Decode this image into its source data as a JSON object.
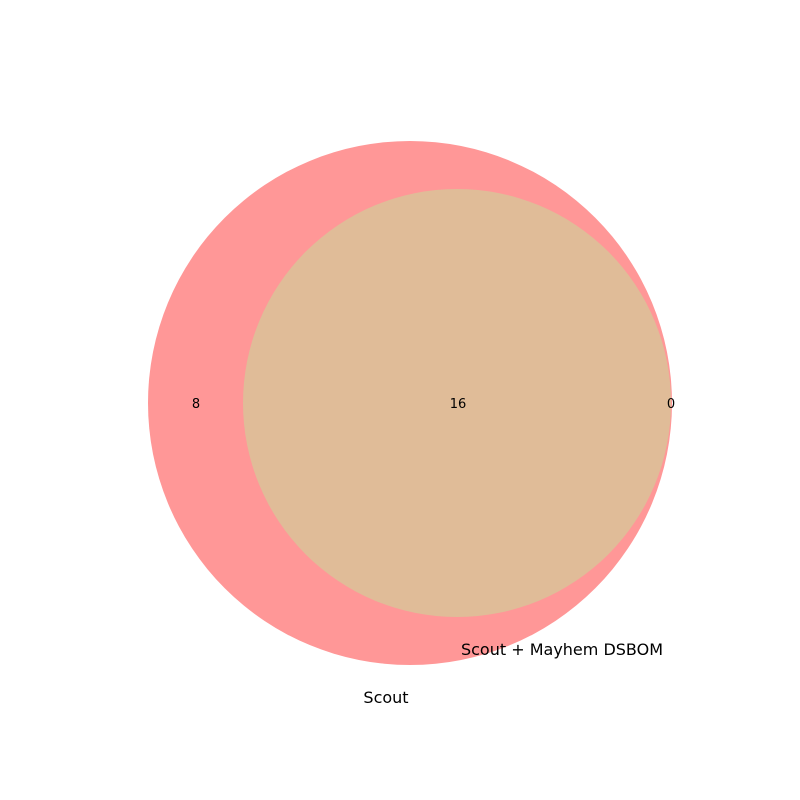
{
  "colors": {
    "scout": "#ff9797",
    "intersection": "#e0bc98"
  },
  "sets": {
    "scout": {
      "label": "Scout"
    },
    "scout_mayhem": {
      "label": "Scout + Mayhem DSBOM"
    }
  },
  "regions": {
    "scout_only": "8",
    "both": "16",
    "scout_mayhem_only": "0"
  }
}
